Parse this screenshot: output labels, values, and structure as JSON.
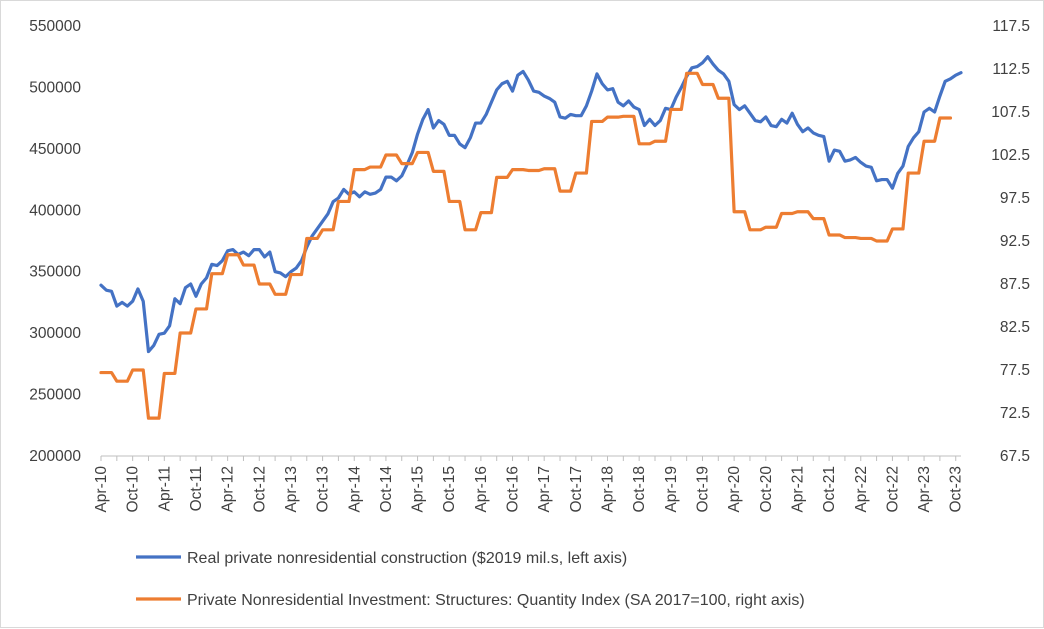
{
  "chart_data": {
    "type": "line",
    "title": "",
    "left_axis": {
      "min": 200000,
      "max": 550000,
      "ticks": [
        "550000",
        "500000",
        "450000",
        "400000",
        "350000",
        "300000",
        "250000",
        "200000"
      ]
    },
    "right_axis": {
      "min": 67.5,
      "max": 117.5,
      "ticks": [
        "117.5",
        "112.5",
        "107.5",
        "102.5",
        "97.5",
        "92.5",
        "87.5",
        "82.5",
        "77.5",
        "72.5",
        "67.5"
      ]
    },
    "x_range_months": 163,
    "x_tick_labels": [
      "Apr-10",
      "Oct-10",
      "Apr-11",
      "Oct-11",
      "Apr-12",
      "Oct-12",
      "Apr-13",
      "Oct-13",
      "Apr-14",
      "Oct-14",
      "Apr-15",
      "Oct-15",
      "Apr-16",
      "Oct-16",
      "Apr-17",
      "Oct-17",
      "Apr-18",
      "Oct-18",
      "Apr-19",
      "Oct-19",
      "Apr-20",
      "Oct-20",
      "Apr-21",
      "Oct-21",
      "Apr-22",
      "Oct-22",
      "Apr-23",
      "Oct-23"
    ],
    "series": [
      {
        "name": "Real private nonresidential construction ($2019 mil.s, left axis)",
        "axis": "left",
        "color": "#4472c4",
        "points": [
          [
            0,
            339000
          ],
          [
            1,
            335000
          ],
          [
            2,
            334000
          ],
          [
            3,
            322000
          ],
          [
            4,
            325000
          ],
          [
            5,
            322000
          ],
          [
            6,
            326000
          ],
          [
            7,
            336000
          ],
          [
            8,
            326000
          ],
          [
            9,
            285000
          ],
          [
            10,
            290000
          ],
          [
            11,
            299000
          ],
          [
            12,
            300000
          ],
          [
            13,
            306000
          ],
          [
            14,
            328000
          ],
          [
            15,
            324000
          ],
          [
            16,
            337000
          ],
          [
            17,
            340000
          ],
          [
            18,
            330000
          ],
          [
            19,
            340000
          ],
          [
            20,
            345000
          ],
          [
            21,
            356000
          ],
          [
            22,
            355000
          ],
          [
            23,
            359000
          ],
          [
            24,
            367000
          ],
          [
            25,
            368000
          ],
          [
            26,
            364000
          ],
          [
            27,
            366000
          ],
          [
            28,
            363000
          ],
          [
            29,
            368000
          ],
          [
            30,
            368000
          ],
          [
            31,
            362000
          ],
          [
            32,
            366000
          ],
          [
            33,
            350000
          ],
          [
            34,
            349000
          ],
          [
            35,
            346000
          ],
          [
            36,
            350000
          ],
          [
            37,
            353000
          ],
          [
            38,
            359000
          ],
          [
            39,
            370000
          ],
          [
            40,
            379000
          ],
          [
            41,
            385000
          ],
          [
            42,
            391000
          ],
          [
            43,
            397000
          ],
          [
            44,
            407000
          ],
          [
            45,
            410000
          ],
          [
            46,
            417000
          ],
          [
            47,
            413000
          ],
          [
            48,
            415000
          ],
          [
            49,
            411000
          ],
          [
            50,
            415000
          ],
          [
            51,
            413000
          ],
          [
            52,
            414000
          ],
          [
            53,
            417000
          ],
          [
            54,
            427000
          ],
          [
            55,
            427000
          ],
          [
            56,
            424000
          ],
          [
            57,
            428000
          ],
          [
            58,
            437000
          ],
          [
            59,
            447000
          ],
          [
            60,
            462000
          ],
          [
            61,
            474000
          ],
          [
            62,
            482000
          ],
          [
            63,
            467000
          ],
          [
            64,
            473000
          ],
          [
            65,
            470000
          ],
          [
            66,
            461000
          ],
          [
            67,
            461000
          ],
          [
            68,
            454000
          ],
          [
            69,
            451000
          ],
          [
            70,
            459000
          ],
          [
            71,
            471000
          ],
          [
            72,
            471000
          ],
          [
            73,
            478000
          ],
          [
            74,
            488000
          ],
          [
            75,
            498000
          ],
          [
            76,
            503000
          ],
          [
            77,
            505000
          ],
          [
            78,
            497000
          ],
          [
            79,
            510000
          ],
          [
            80,
            513000
          ],
          [
            81,
            506000
          ],
          [
            82,
            497000
          ],
          [
            83,
            496000
          ],
          [
            84,
            493000
          ],
          [
            85,
            491000
          ],
          [
            86,
            488000
          ],
          [
            87,
            476000
          ],
          [
            88,
            475000
          ],
          [
            89,
            478000
          ],
          [
            90,
            477000
          ],
          [
            91,
            477000
          ],
          [
            92,
            485000
          ],
          [
            93,
            497000
          ],
          [
            94,
            511000
          ],
          [
            95,
            503000
          ],
          [
            96,
            498000
          ],
          [
            97,
            499000
          ],
          [
            98,
            488000
          ],
          [
            99,
            485000
          ],
          [
            100,
            489000
          ],
          [
            101,
            484000
          ],
          [
            102,
            482000
          ],
          [
            103,
            469000
          ],
          [
            104,
            474000
          ],
          [
            105,
            469000
          ],
          [
            106,
            473000
          ],
          [
            107,
            483000
          ],
          [
            108,
            482000
          ],
          [
            109,
            492000
          ],
          [
            110,
            500000
          ],
          [
            111,
            509000
          ],
          [
            112,
            516000
          ],
          [
            113,
            517000
          ],
          [
            114,
            520000
          ],
          [
            115,
            525000
          ],
          [
            116,
            519000
          ],
          [
            117,
            514000
          ],
          [
            118,
            511000
          ],
          [
            119,
            505000
          ],
          [
            120,
            486000
          ],
          [
            121,
            482000
          ],
          [
            122,
            485000
          ],
          [
            123,
            479000
          ],
          [
            124,
            473000
          ],
          [
            125,
            472000
          ],
          [
            126,
            476000
          ],
          [
            127,
            469000
          ],
          [
            128,
            468000
          ],
          [
            129,
            474000
          ],
          [
            130,
            471000
          ],
          [
            131,
            479000
          ],
          [
            132,
            470000
          ],
          [
            133,
            464000
          ],
          [
            134,
            467000
          ],
          [
            135,
            463000
          ],
          [
            136,
            461000
          ],
          [
            137,
            460000
          ],
          [
            138,
            440000
          ],
          [
            139,
            449000
          ],
          [
            140,
            448000
          ],
          [
            141,
            440000
          ],
          [
            142,
            441000
          ],
          [
            143,
            443000
          ],
          [
            144,
            439000
          ],
          [
            145,
            436000
          ],
          [
            146,
            435000
          ],
          [
            147,
            424000
          ],
          [
            148,
            425000
          ],
          [
            149,
            425000
          ],
          [
            150,
            418000
          ],
          [
            151,
            430000
          ],
          [
            152,
            436000
          ],
          [
            153,
            452000
          ],
          [
            154,
            459000
          ],
          [
            155,
            464000
          ],
          [
            156,
            480000
          ],
          [
            157,
            483000
          ],
          [
            158,
            480000
          ],
          [
            159,
            493000
          ],
          [
            160,
            505000
          ],
          [
            161,
            507000
          ],
          [
            162,
            510000
          ],
          [
            163,
            512000
          ]
        ]
      },
      {
        "name": "Private Nonresidential Investment: Structures: Quantity Index (SA 2017=100, right axis)",
        "axis": "right",
        "color": "#ed7d31",
        "points": [
          [
            0,
            77.2
          ],
          [
            2,
            77.2
          ],
          [
            3,
            76.2
          ],
          [
            5,
            76.2
          ],
          [
            6,
            77.5
          ],
          [
            8,
            77.5
          ],
          [
            9,
            71.9
          ],
          [
            11,
            71.9
          ],
          [
            12,
            77.1
          ],
          [
            14,
            77.1
          ],
          [
            15,
            81.8
          ],
          [
            17,
            81.8
          ],
          [
            18,
            84.6
          ],
          [
            20,
            84.6
          ],
          [
            21,
            88.7
          ],
          [
            23,
            88.7
          ],
          [
            24,
            90.9
          ],
          [
            26,
            90.9
          ],
          [
            27,
            89.7
          ],
          [
            29,
            89.7
          ],
          [
            30,
            87.5
          ],
          [
            32,
            87.5
          ],
          [
            33,
            86.3
          ],
          [
            35,
            86.3
          ],
          [
            36,
            88.6
          ],
          [
            38,
            88.6
          ],
          [
            39,
            92.8
          ],
          [
            41,
            92.8
          ],
          [
            42,
            93.8
          ],
          [
            44,
            93.8
          ],
          [
            45,
            97.1
          ],
          [
            47,
            97.1
          ],
          [
            48,
            100.8
          ],
          [
            50,
            100.8
          ],
          [
            51,
            101.1
          ],
          [
            53,
            101.1
          ],
          [
            54,
            102.5
          ],
          [
            56,
            102.5
          ],
          [
            57,
            101.5
          ],
          [
            59,
            101.5
          ],
          [
            60,
            102.8
          ],
          [
            62,
            102.8
          ],
          [
            63,
            100.6
          ],
          [
            65,
            100.6
          ],
          [
            66,
            97.1
          ],
          [
            68,
            97.1
          ],
          [
            69,
            93.8
          ],
          [
            71,
            93.8
          ],
          [
            72,
            95.8
          ],
          [
            74,
            95.8
          ],
          [
            75,
            99.9
          ],
          [
            77,
            99.9
          ],
          [
            78,
            100.8
          ],
          [
            80,
            100.8
          ],
          [
            81,
            100.7
          ],
          [
            83,
            100.7
          ],
          [
            84,
            100.9
          ],
          [
            86,
            100.9
          ],
          [
            87,
            98.3
          ],
          [
            89,
            98.3
          ],
          [
            90,
            100.4
          ],
          [
            92,
            100.4
          ],
          [
            93,
            106.4
          ],
          [
            95,
            106.4
          ],
          [
            96,
            106.9
          ],
          [
            98,
            106.9
          ],
          [
            99,
            107.0
          ],
          [
            101,
            107.0
          ],
          [
            102,
            103.8
          ],
          [
            104,
            103.8
          ],
          [
            105,
            104.1
          ],
          [
            107,
            104.1
          ],
          [
            108,
            107.8
          ],
          [
            110,
            107.8
          ],
          [
            111,
            112.0
          ],
          [
            113,
            112.0
          ],
          [
            114,
            110.7
          ],
          [
            116,
            110.7
          ],
          [
            117,
            109.1
          ],
          [
            119,
            109.1
          ],
          [
            120,
            95.9
          ],
          [
            122,
            95.9
          ],
          [
            123,
            93.8
          ],
          [
            125,
            93.8
          ],
          [
            126,
            94.1
          ],
          [
            128,
            94.1
          ],
          [
            129,
            95.7
          ],
          [
            131,
            95.7
          ],
          [
            132,
            95.9
          ],
          [
            134,
            95.9
          ],
          [
            135,
            95.1
          ],
          [
            137,
            95.1
          ],
          [
            138,
            93.2
          ],
          [
            140,
            93.2
          ],
          [
            141,
            92.9
          ],
          [
            143,
            92.9
          ],
          [
            144,
            92.8
          ],
          [
            146,
            92.8
          ],
          [
            147,
            92.5
          ],
          [
            149,
            92.5
          ],
          [
            150,
            93.9
          ],
          [
            152,
            93.9
          ],
          [
            153,
            100.4
          ],
          [
            155,
            100.4
          ],
          [
            156,
            104.1
          ],
          [
            158,
            104.1
          ],
          [
            159,
            106.8
          ],
          [
            161,
            106.8
          ]
        ]
      }
    ],
    "legend_position": "bottom",
    "grid": false
  }
}
